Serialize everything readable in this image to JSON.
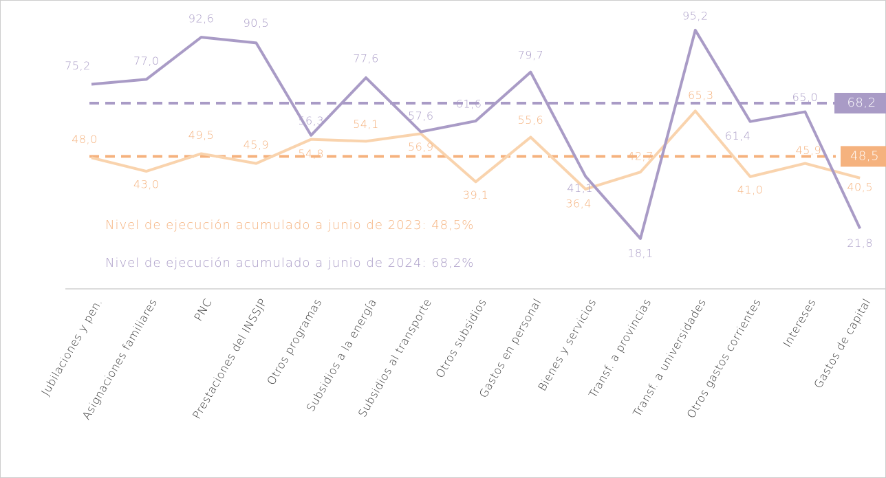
{
  "chart_data": {
    "type": "line",
    "categories": [
      "Jubilaciones y pen.",
      "Asignaciones familiares",
      "PNC",
      "Prestaciones del INSSJP",
      "Otros programas",
      "Subsidios a la energía",
      "Subsidios al transporte",
      "Otros subsidios",
      "Gastos en personal",
      "Bienes y servicios",
      "Transf. a provincias",
      "Transf. a universidades",
      "Otros gastos corrientes",
      "Intereses",
      "Gastos de capital"
    ],
    "series": [
      {
        "color": "#a99bc6",
        "values": [
          75.2,
          77.0,
          92.6,
          90.5,
          56.3,
          77.6,
          57.6,
          61.6,
          79.7,
          41.1,
          18.1,
          95.2,
          61.4,
          65.0,
          21.8
        ],
        "value_labels": [
          "75,2",
          "77,0",
          "92,6",
          "90,5",
          "56,3",
          "77,6",
          "57,6",
          "61,6",
          "79,7",
          "41,1",
          "18,1",
          "95,2",
          "61,4",
          "65,0",
          "21,8"
        ]
      },
      {
        "color": "#f9d3ad",
        "values": [
          48.0,
          43.0,
          49.5,
          45.9,
          54.8,
          54.1,
          56.9,
          39.1,
          55.6,
          36.4,
          42.7,
          65.3,
          41.0,
          45.9,
          40.5
        ],
        "value_labels": [
          "48,0",
          "43,0",
          "49,5",
          "45,9",
          "54,8",
          "54,1",
          "56,9",
          "39,1",
          "55,6",
          "36,4",
          "42,7",
          "65,3",
          "41,0",
          "45,9",
          "40,5"
        ]
      }
    ],
    "reference_lines": [
      {
        "value": 68.2,
        "label": "68,2",
        "color": "#a99bc6"
      },
      {
        "value": 48.5,
        "label": "48,5",
        "color": "#f5b27e"
      }
    ],
    "annotations": [
      {
        "text": "Nivel de ejecución acumulado a junio de 2023: 48,5%",
        "color": "#f5b27e"
      },
      {
        "text": "Nivel de ejecución acumulado a junio de 2024: 68,2%",
        "color": "#a99bc6"
      }
    ]
  }
}
